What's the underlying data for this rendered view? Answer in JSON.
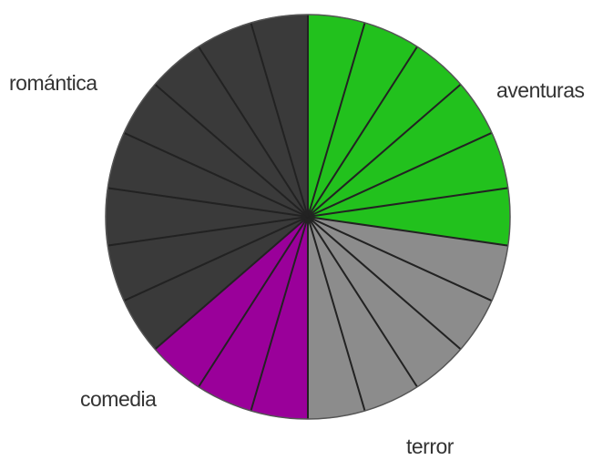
{
  "chart_data": {
    "type": "pie",
    "title": "",
    "start": "top",
    "direction": "clockwise",
    "slice_units": 1,
    "categories": [
      "aventuras",
      "terror",
      "comedia",
      "romántica"
    ],
    "values": [
      6,
      5,
      3,
      8
    ],
    "colors": [
      "#22c11d",
      "#8c8c8c",
      "#9a009a",
      "#3a3a3a"
    ],
    "divider_color": "#222222",
    "legend": "none",
    "labels": [
      {
        "text": "aventuras"
      },
      {
        "text": "terror"
      },
      {
        "text": "comedia"
      },
      {
        "text": "romántica"
      }
    ]
  }
}
